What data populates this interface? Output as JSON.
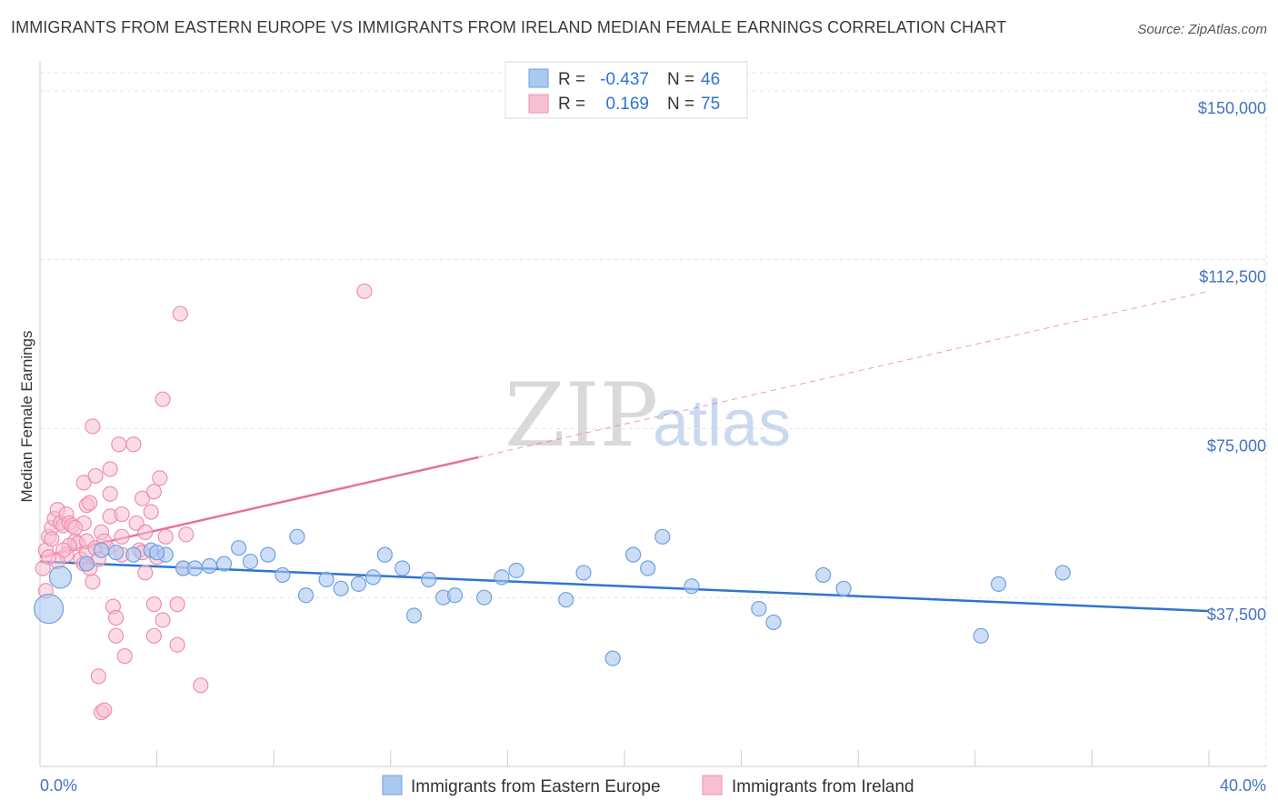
{
  "title": "IMMIGRANTS FROM EASTERN EUROPE VS IMMIGRANTS FROM IRELAND MEDIAN FEMALE EARNINGS CORRELATION CHART",
  "source": "Source: ZipAtlas.com",
  "watermark": {
    "zip": "ZIP",
    "atlas": "atlas"
  },
  "chart_data": {
    "type": "scatter",
    "title": "IMMIGRANTS FROM EASTERN EUROPE VS IMMIGRANTS FROM IRELAND MEDIAN FEMALE EARNINGS CORRELATION CHART",
    "xlabel": "",
    "ylabel": "Median Female Earnings",
    "xlim": [
      0,
      40
    ],
    "ylim": [
      0,
      154000
    ],
    "x_tick_labels": [
      "0.0%",
      "40.0%"
    ],
    "y_ticks": [
      37500,
      75000,
      112500,
      150000
    ],
    "y_tick_labels": [
      "$37,500",
      "$75,000",
      "$112,500",
      "$150,000"
    ],
    "legend_position": "top-center",
    "grid": true,
    "series": [
      {
        "name": "Immigrants from Eastern Europe",
        "color": "#6fa0e0",
        "fill": "#aac8f0",
        "line_color": "#2f74d0",
        "R": "-0.437",
        "N": "46",
        "trend": {
          "x": [
            0,
            40
          ],
          "y": [
            45500,
            34500
          ],
          "dashed_from": null
        },
        "points": [
          [
            0.3,
            35000,
            16
          ],
          [
            0.7,
            42000,
            12
          ],
          [
            1.6,
            45000,
            8
          ],
          [
            2.1,
            48000,
            8
          ],
          [
            2.6,
            47500,
            8
          ],
          [
            3.2,
            47000,
            8
          ],
          [
            3.8,
            48000,
            8
          ],
          [
            4.3,
            47000,
            8
          ],
          [
            4.9,
            44000,
            8
          ],
          [
            5.3,
            44000,
            8
          ],
          [
            5.8,
            44500,
            8
          ],
          [
            6.3,
            45000,
            8
          ],
          [
            6.8,
            48500,
            8
          ],
          [
            7.2,
            45500,
            8
          ],
          [
            7.8,
            47000,
            8
          ],
          [
            8.3,
            42500,
            8
          ],
          [
            8.8,
            51000,
            8
          ],
          [
            9.1,
            38000,
            8
          ],
          [
            9.8,
            41500,
            8
          ],
          [
            10.3,
            39500,
            8
          ],
          [
            10.9,
            40500,
            8
          ],
          [
            11.4,
            42000,
            8
          ],
          [
            11.8,
            47000,
            8
          ],
          [
            12.4,
            44000,
            8
          ],
          [
            12.8,
            33500,
            8
          ],
          [
            13.3,
            41500,
            8
          ],
          [
            13.8,
            37500,
            8
          ],
          [
            14.2,
            38000,
            8
          ],
          [
            15.2,
            37500,
            8
          ],
          [
            15.8,
            42000,
            8
          ],
          [
            16.3,
            43500,
            8
          ],
          [
            18.0,
            37000,
            8
          ],
          [
            18.6,
            43000,
            8
          ],
          [
            19.6,
            24000,
            8
          ],
          [
            20.3,
            47000,
            8
          ],
          [
            20.8,
            44000,
            8
          ],
          [
            21.3,
            51000,
            8
          ],
          [
            22.3,
            40000,
            8
          ],
          [
            24.6,
            35000,
            8
          ],
          [
            25.1,
            32000,
            8
          ],
          [
            26.8,
            42500,
            8
          ],
          [
            27.5,
            39500,
            8
          ],
          [
            32.2,
            29000,
            8
          ],
          [
            32.8,
            40500,
            8
          ],
          [
            35.0,
            43000,
            8
          ],
          [
            4.0,
            47500,
            8
          ]
        ]
      },
      {
        "name": "Immigrants from Ireland",
        "color": "#ef8fb0",
        "fill": "#f7c0d2",
        "line_color": "#e8709a",
        "R": "0.169",
        "N": "75",
        "trend": {
          "x": [
            0,
            40
          ],
          "y": [
            46500,
            105500
          ],
          "dashed_from": 15
        }
      }
    ]
  },
  "pink_points": [
    [
      0.1,
      44000
    ],
    [
      0.2,
      48000
    ],
    [
      0.3,
      51000
    ],
    [
      0.4,
      53000
    ],
    [
      0.5,
      55000
    ],
    [
      0.6,
      57000
    ],
    [
      0.7,
      54000
    ],
    [
      0.8,
      53500
    ],
    [
      0.9,
      56000
    ],
    [
      1.0,
      54000
    ],
    [
      1.1,
      53500
    ],
    [
      1.2,
      50000
    ],
    [
      1.3,
      49500
    ],
    [
      1.4,
      46000
    ],
    [
      1.5,
      45000
    ],
    [
      1.6,
      47500
    ],
    [
      1.7,
      44000
    ],
    [
      1.6,
      50000
    ],
    [
      1.5,
      54000
    ],
    [
      1.2,
      53000
    ],
    [
      1.0,
      49000
    ],
    [
      0.9,
      47000
    ],
    [
      0.8,
      48000
    ],
    [
      0.6,
      45500
    ],
    [
      0.4,
      50500
    ],
    [
      0.3,
      46500
    ],
    [
      0.2,
      39000
    ],
    [
      1.5,
      63000
    ],
    [
      1.6,
      58000
    ],
    [
      1.7,
      58500
    ],
    [
      1.8,
      41000
    ],
    [
      1.8,
      75500
    ],
    [
      1.9,
      64500
    ],
    [
      1.9,
      48500
    ],
    [
      2.0,
      46000
    ],
    [
      2.1,
      52000
    ],
    [
      2.2,
      50000
    ],
    [
      2.3,
      48500
    ],
    [
      2.4,
      66000
    ],
    [
      2.4,
      60500
    ],
    [
      2.4,
      55500
    ],
    [
      2.5,
      35500
    ],
    [
      2.6,
      33000
    ],
    [
      2.6,
      29000
    ],
    [
      2.7,
      71500
    ],
    [
      2.8,
      56000
    ],
    [
      2.8,
      51000
    ],
    [
      2.8,
      47000
    ],
    [
      2.9,
      24500
    ],
    [
      2.0,
      20000
    ],
    [
      2.1,
      12000
    ],
    [
      2.2,
      12500
    ],
    [
      3.2,
      71500
    ],
    [
      3.3,
      54000
    ],
    [
      3.4,
      48000
    ],
    [
      3.5,
      59500
    ],
    [
      3.5,
      47500
    ],
    [
      3.6,
      52000
    ],
    [
      3.6,
      43000
    ],
    [
      3.8,
      56500
    ],
    [
      3.9,
      61000
    ],
    [
      3.9,
      36000
    ],
    [
      3.9,
      29000
    ],
    [
      4.0,
      46500
    ],
    [
      4.1,
      64000
    ],
    [
      4.2,
      81500
    ],
    [
      4.2,
      32500
    ],
    [
      4.3,
      51000
    ],
    [
      4.7,
      36000
    ],
    [
      4.8,
      100500
    ],
    [
      4.9,
      44000
    ],
    [
      5.0,
      51500
    ],
    [
      5.5,
      18000
    ],
    [
      11.1,
      105500
    ],
    [
      4.7,
      27000
    ]
  ],
  "legend": {
    "rows": [
      {
        "r_label": "R =",
        "r_value": "-0.437",
        "n_label": "N =",
        "n_value": "46"
      },
      {
        "r_label": "R =",
        "r_value": "0.169",
        "n_label": "N =",
        "n_value": "75"
      }
    ]
  }
}
